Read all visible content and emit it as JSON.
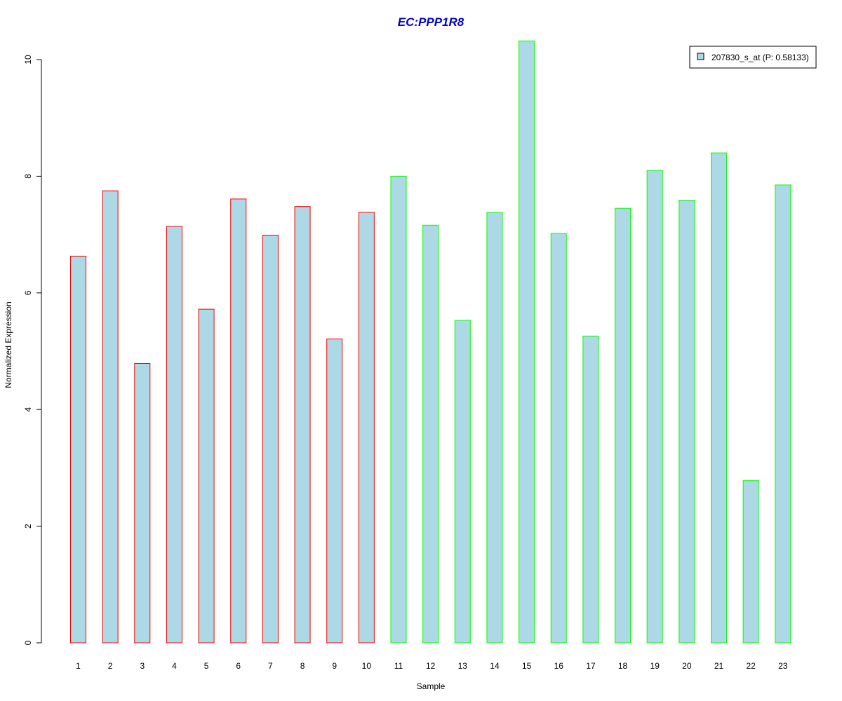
{
  "chart_data": {
    "type": "bar",
    "title": "EC:PPP1R8",
    "xlabel": "Sample",
    "ylabel": "Normalized Expression",
    "ylim": [
      0,
      10.4
    ],
    "yticks": [
      0,
      2,
      4,
      6,
      8,
      10
    ],
    "categories": [
      "1",
      "2",
      "3",
      "4",
      "5",
      "6",
      "7",
      "8",
      "9",
      "10",
      "11",
      "12",
      "13",
      "14",
      "15",
      "16",
      "17",
      "18",
      "19",
      "20",
      "21",
      "22",
      "23"
    ],
    "series": [
      {
        "name": "207830_s_at (P: 0.58133)",
        "values": [
          6.63,
          7.75,
          4.79,
          7.14,
          5.72,
          7.61,
          6.99,
          7.48,
          5.21,
          7.38,
          8.0,
          7.16,
          5.53,
          7.38,
          10.32,
          7.02,
          5.26,
          7.45,
          8.1,
          7.59,
          8.4,
          2.78,
          7.85
        ]
      }
    ],
    "groups": [
      "red",
      "red",
      "red",
      "red",
      "red",
      "red",
      "red",
      "red",
      "red",
      "red",
      "green",
      "green",
      "green",
      "green",
      "green",
      "green",
      "green",
      "green",
      "green",
      "green",
      "green",
      "green",
      "green"
    ],
    "colors": {
      "fill": "#add8e6",
      "border_red": "#ff0000",
      "border_green": "#00ff00",
      "title": "#0000cc",
      "axis": "#000000"
    },
    "legend_position": "top-right",
    "grid": false
  }
}
